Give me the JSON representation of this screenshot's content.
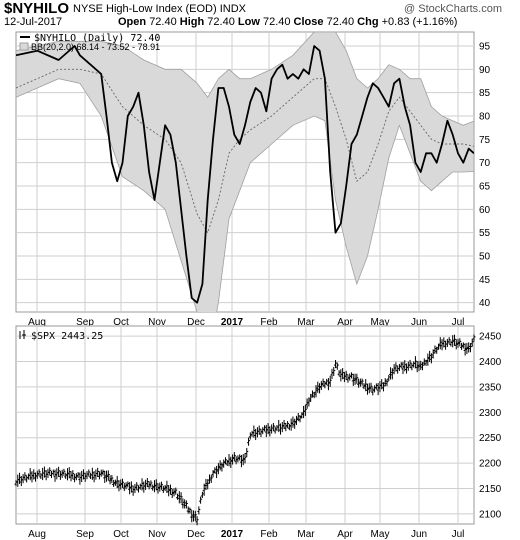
{
  "header": {
    "symbol": "$NYHILO",
    "description": "NYSE High-Low Index (EOD)",
    "exchange": "INDX",
    "date": "12-Jul-2017",
    "open_label": "Open",
    "open": "72.40",
    "high_label": "High",
    "high": "72.40",
    "low_label": "Low",
    "low": "72.40",
    "close_label": "Close",
    "close": "72.40",
    "chg_label": "Chg",
    "chg": "+0.83 (+1.16%)",
    "brand": "@ StockCharts.com"
  },
  "colors": {
    "line": "#000000",
    "band_fill": "#d9d9d9",
    "band_edge": "#a0a0a0",
    "grid": "#cfcfcf",
    "frame": "#999999"
  },
  "x_axis": {
    "labels": [
      "Aug",
      "Sep",
      "Oct",
      "Nov",
      "Dec",
      "2017",
      "Feb",
      "Mar",
      "Apr",
      "May",
      "Jun",
      "Jul"
    ],
    "bold": [
      "2017"
    ]
  },
  "chart_data": [
    {
      "type": "line",
      "legend": [
        "$NYHILO (Daily) 72.40",
        "BB(20,2.0) 68.14 - 73.52 - 78.91"
      ],
      "ylim": [
        38,
        98
      ],
      "yticks": [
        40,
        45,
        50,
        55,
        60,
        65,
        70,
        75,
        80,
        85,
        90,
        95
      ],
      "grid": true,
      "series": [
        {
          "name": "$NYHILO (Daily)",
          "points": [
            [
              0,
              93
            ],
            [
              4,
              94
            ],
            [
              8,
              92
            ],
            [
              11,
              95
            ],
            [
              12,
              93
            ],
            [
              14,
              91
            ],
            [
              16,
              89
            ],
            [
              17,
              80
            ],
            [
              18,
              70
            ],
            [
              19,
              66
            ],
            [
              20,
              70
            ],
            [
              21,
              80
            ],
            [
              22,
              82
            ],
            [
              23,
              85
            ],
            [
              24,
              78
            ],
            [
              25,
              68
            ],
            [
              26,
              62
            ],
            [
              27,
              70
            ],
            [
              28,
              78
            ],
            [
              29,
              76
            ],
            [
              30,
              70
            ],
            [
              31,
              60
            ],
            [
              32,
              50
            ],
            [
              33,
              41
            ],
            [
              34,
              40
            ],
            [
              35,
              44
            ],
            [
              36,
              62
            ],
            [
              37,
              75
            ],
            [
              38,
              86
            ],
            [
              39,
              86
            ],
            [
              40,
              82
            ],
            [
              41,
              76
            ],
            [
              42,
              74
            ],
            [
              43,
              78
            ],
            [
              44,
              83
            ],
            [
              45,
              86
            ],
            [
              46,
              85
            ],
            [
              47,
              81
            ],
            [
              48,
              88
            ],
            [
              49,
              90
            ],
            [
              50,
              91
            ],
            [
              51,
              88
            ],
            [
              52,
              89
            ],
            [
              53,
              88
            ],
            [
              54,
              90
            ],
            [
              55,
              89
            ],
            [
              56,
              95
            ],
            [
              57,
              94
            ],
            [
              58,
              88
            ],
            [
              59,
              68
            ],
            [
              60,
              55
            ],
            [
              61,
              57
            ],
            [
              62,
              65
            ],
            [
              63,
              74
            ],
            [
              64,
              76
            ],
            [
              65,
              80
            ],
            [
              66,
              84
            ],
            [
              67,
              87
            ],
            [
              68,
              86
            ],
            [
              69,
              84
            ],
            [
              70,
              82
            ],
            [
              71,
              87
            ],
            [
              72,
              88
            ],
            [
              73,
              82
            ],
            [
              74,
              78
            ],
            [
              75,
              70
            ],
            [
              76,
              68
            ],
            [
              77,
              72
            ],
            [
              78,
              72
            ],
            [
              79,
              70
            ],
            [
              80,
              74
            ],
            [
              81,
              79
            ],
            [
              82,
              76
            ],
            [
              83,
              72
            ],
            [
              84,
              70
            ],
            [
              85,
              73
            ],
            [
              86,
              72
            ]
          ]
        },
        {
          "name": "BB middle",
          "points": [
            [
              0,
              86
            ],
            [
              4,
              88
            ],
            [
              8,
              90
            ],
            [
              12,
              90
            ],
            [
              16,
              89
            ],
            [
              20,
              82
            ],
            [
              24,
              78
            ],
            [
              28,
              75
            ],
            [
              31,
              70
            ],
            [
              34,
              59
            ],
            [
              36,
              55
            ],
            [
              38,
              62
            ],
            [
              40,
              72
            ],
            [
              42,
              75
            ],
            [
              44,
              77
            ],
            [
              48,
              80
            ],
            [
              52,
              84
            ],
            [
              56,
              88
            ],
            [
              58,
              88
            ],
            [
              60,
              82
            ],
            [
              62,
              75
            ],
            [
              64,
              66
            ],
            [
              66,
              68
            ],
            [
              68,
              74
            ],
            [
              70,
              81
            ],
            [
              72,
              84
            ],
            [
              74,
              81
            ],
            [
              76,
              78
            ],
            [
              78,
              75
            ],
            [
              80,
              74
            ],
            [
              82,
              74
            ],
            [
              84,
              74
            ],
            [
              86,
              73.5
            ]
          ]
        },
        {
          "name": "BB upper",
          "points": [
            [
              0,
              94
            ],
            [
              4,
              95
            ],
            [
              8,
              96
            ],
            [
              12,
              96
            ],
            [
              16,
              96
            ],
            [
              20,
              95
            ],
            [
              24,
              92
            ],
            [
              28,
              90
            ],
            [
              31,
              90
            ],
            [
              34,
              87
            ],
            [
              36,
              84
            ],
            [
              38,
              88
            ],
            [
              40,
              90
            ],
            [
              42,
              88
            ],
            [
              44,
              88
            ],
            [
              48,
              90
            ],
            [
              52,
              93
            ],
            [
              56,
              98
            ],
            [
              58,
              98
            ],
            [
              60,
              98
            ],
            [
              62,
              94
            ],
            [
              64,
              88
            ],
            [
              66,
              86
            ],
            [
              68,
              88
            ],
            [
              70,
              91
            ],
            [
              72,
              90
            ],
            [
              74,
              88
            ],
            [
              76,
              88
            ],
            [
              78,
              82
            ],
            [
              80,
              80
            ],
            [
              82,
              79
            ],
            [
              84,
              78
            ],
            [
              86,
              78.9
            ]
          ]
        },
        {
          "name": "BB lower",
          "points": [
            [
              0,
              84
            ],
            [
              4,
              86
            ],
            [
              8,
              88
            ],
            [
              12,
              87
            ],
            [
              16,
              80
            ],
            [
              20,
              67
            ],
            [
              24,
              64
            ],
            [
              28,
              60
            ],
            [
              31,
              49
            ],
            [
              34,
              38
            ],
            [
              36,
              28
            ],
            [
              38,
              40
            ],
            [
              40,
              58
            ],
            [
              42,
              64
            ],
            [
              44,
              70
            ],
            [
              48,
              74
            ],
            [
              52,
              78
            ],
            [
              56,
              80
            ],
            [
              58,
              79
            ],
            [
              60,
              62
            ],
            [
              62,
              52
            ],
            [
              64,
              44
            ],
            [
              66,
              50
            ],
            [
              68,
              60
            ],
            [
              70,
              71
            ],
            [
              72,
              78
            ],
            [
              74,
              72
            ],
            [
              76,
              66
            ],
            [
              78,
              64
            ],
            [
              80,
              66
            ],
            [
              82,
              68
            ],
            [
              84,
              68
            ],
            [
              86,
              68.1
            ]
          ]
        }
      ]
    },
    {
      "type": "ohlc",
      "legend": [
        "$SPX 2443.25"
      ],
      "ylim": [
        2080,
        2470
      ],
      "yticks": [
        2100,
        2150,
        2200,
        2250,
        2300,
        2350,
        2400,
        2450
      ],
      "grid": true,
      "series": [
        {
          "name": "$SPX",
          "points": [
            [
              0,
              2165
            ],
            [
              4,
              2178
            ],
            [
              8,
              2180
            ],
            [
              12,
              2173
            ],
            [
              16,
              2180
            ],
            [
              19,
              2160
            ],
            [
              22,
              2150
            ],
            [
              25,
              2158
            ],
            [
              28,
              2150
            ],
            [
              30,
              2142
            ],
            [
              33,
              2100
            ],
            [
              34,
              2090
            ],
            [
              35,
              2140
            ],
            [
              37,
              2180
            ],
            [
              39,
              2198
            ],
            [
              41,
              2210
            ],
            [
              43,
              2205
            ],
            [
              44,
              2258
            ],
            [
              46,
              2262
            ],
            [
              48,
              2268
            ],
            [
              50,
              2270
            ],
            [
              52,
              2278
            ],
            [
              54,
              2296
            ],
            [
              55,
              2325
            ],
            [
              57,
              2350
            ],
            [
              59,
              2362
            ],
            [
              60,
              2395
            ],
            [
              61,
              2372
            ],
            [
              63,
              2370
            ],
            [
              65,
              2355
            ],
            [
              67,
              2345
            ],
            [
              69,
              2352
            ],
            [
              71,
              2385
            ],
            [
              73,
              2390
            ],
            [
              75,
              2395
            ],
            [
              76,
              2388
            ],
            [
              77,
              2402
            ],
            [
              78,
              2410
            ],
            [
              79,
              2425
            ],
            [
              80,
              2435
            ],
            [
              82,
              2440
            ],
            [
              84,
              2430
            ],
            [
              85,
              2425
            ],
            [
              86,
              2443
            ]
          ]
        }
      ]
    }
  ]
}
